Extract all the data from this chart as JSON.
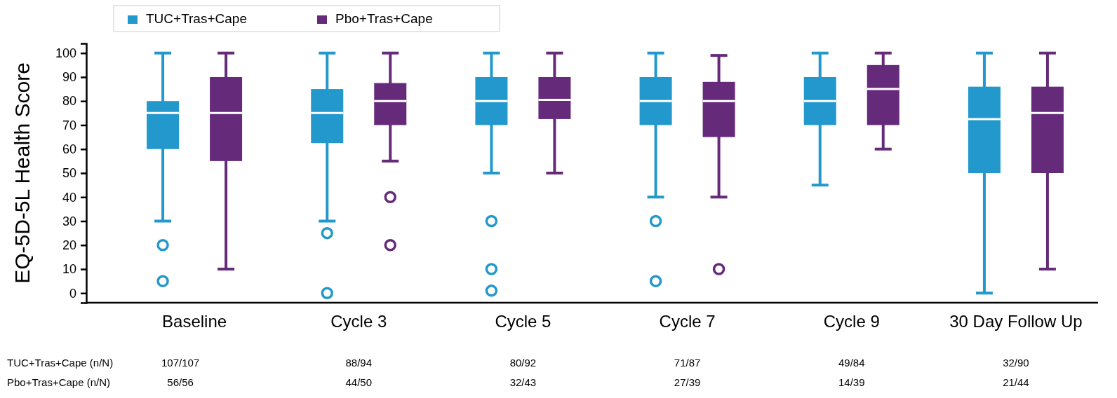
{
  "chart_data": {
    "type": "box",
    "ylabel": "EQ-5D-5L Health Score",
    "categories": [
      "Baseline",
      "Cycle 3",
      "Cycle 5",
      "Cycle 7",
      "Cycle 9",
      "30 Day Follow Up"
    ],
    "ylim": [
      -4,
      104
    ],
    "yticks": [
      0,
      10,
      20,
      30,
      40,
      50,
      60,
      70,
      80,
      90,
      100
    ],
    "legend": "top",
    "grid": false,
    "series": [
      {
        "name": "TUC+Tras+Cape",
        "color": "#2398cc",
        "boxes": [
          {
            "low": 30,
            "q1": 60,
            "median": 75,
            "q3": 80,
            "high": 100,
            "outliers": [
              20,
              5
            ]
          },
          {
            "low": 30,
            "q1": 62.5,
            "median": 75,
            "q3": 85,
            "high": 100,
            "outliers": [
              25,
              0
            ]
          },
          {
            "low": 50,
            "q1": 70,
            "median": 80,
            "q3": 90,
            "high": 100,
            "outliers": [
              30,
              10,
              1
            ]
          },
          {
            "low": 40,
            "q1": 70,
            "median": 80,
            "q3": 90,
            "high": 100,
            "outliers": [
              30,
              5
            ]
          },
          {
            "low": 45,
            "q1": 70,
            "median": 80,
            "q3": 90,
            "high": 100
          },
          {
            "low": 0,
            "q1": 50,
            "median": 72.5,
            "q3": 86,
            "high": 100
          }
        ]
      },
      {
        "name": "Pbo+Tras+Cape",
        "color": "#662a7b",
        "boxes": [
          {
            "low": 10,
            "q1": 55,
            "median": 75,
            "q3": 90,
            "high": 100
          },
          {
            "low": 55,
            "q1": 70,
            "median": 80,
            "q3": 87.5,
            "high": 100,
            "outliers": [
              40,
              20
            ]
          },
          {
            "low": 50,
            "q1": 72.5,
            "median": 80.5,
            "q3": 90,
            "high": 100
          },
          {
            "low": 40,
            "q1": 65,
            "median": 80,
            "q3": 88,
            "high": 99,
            "outliers": [
              10
            ]
          },
          {
            "low": 60,
            "q1": 70,
            "median": 85,
            "q3": 95,
            "high": 100
          },
          {
            "low": 10,
            "q1": 50,
            "median": 75,
            "q3": 86,
            "high": 100
          }
        ]
      }
    ],
    "annotations": [
      "TUC+Tras+Cape (n/N)",
      "107/107",
      "88/94",
      "80/92",
      "71/87",
      "49/84",
      "32/90",
      "Pbo+Tras+Cape (n/N)",
      "56/56",
      "44/50",
      "32/43",
      "27/39",
      "14/39",
      "21/44"
    ]
  }
}
